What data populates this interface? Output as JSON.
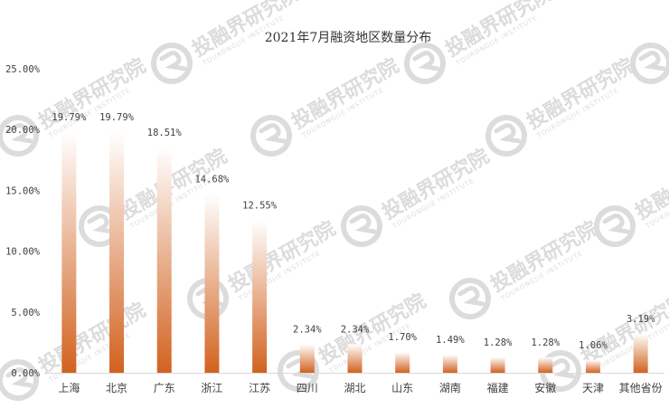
{
  "colors": {
    "bar_dark": "#d2621f",
    "bar_light": "#ffffff",
    "axis": "#d9d9d9",
    "text": "#404040",
    "watermark": "#dcdcdc"
  },
  "watermark": {
    "text": "投融界研究院",
    "subtext": "TOURONGJIE INSTITUTE"
  },
  "chart_data": {
    "type": "bar",
    "title": "2021年7月融资地区数量分布",
    "categories": [
      "上海",
      "北京",
      "广东",
      "浙江",
      "江苏",
      "四川",
      "湖北",
      "山东",
      "湖南",
      "福建",
      "安徽",
      "天津",
      "其他省份"
    ],
    "values": [
      19.79,
      19.79,
      18.51,
      14.68,
      12.55,
      2.34,
      2.34,
      1.7,
      1.49,
      1.28,
      1.28,
      1.06,
      3.19
    ],
    "data_labels": [
      "19.79%",
      "19.79%",
      "18.51%",
      "14.68%",
      "12.55%",
      "2.34%",
      "2.34%",
      "1.70%",
      "1.49%",
      "1.28%",
      "1.28%",
      "1.06%",
      "3.19%"
    ],
    "yticks": [
      0,
      5,
      10,
      15,
      20,
      25
    ],
    "ytick_labels": [
      "0.00%",
      "5.00%",
      "10.00%",
      "15.00%",
      "20.00%",
      "25.00%"
    ],
    "ylim": [
      0,
      25
    ],
    "xlabel": "",
    "ylabel": "",
    "grid": false,
    "legend": "none"
  }
}
